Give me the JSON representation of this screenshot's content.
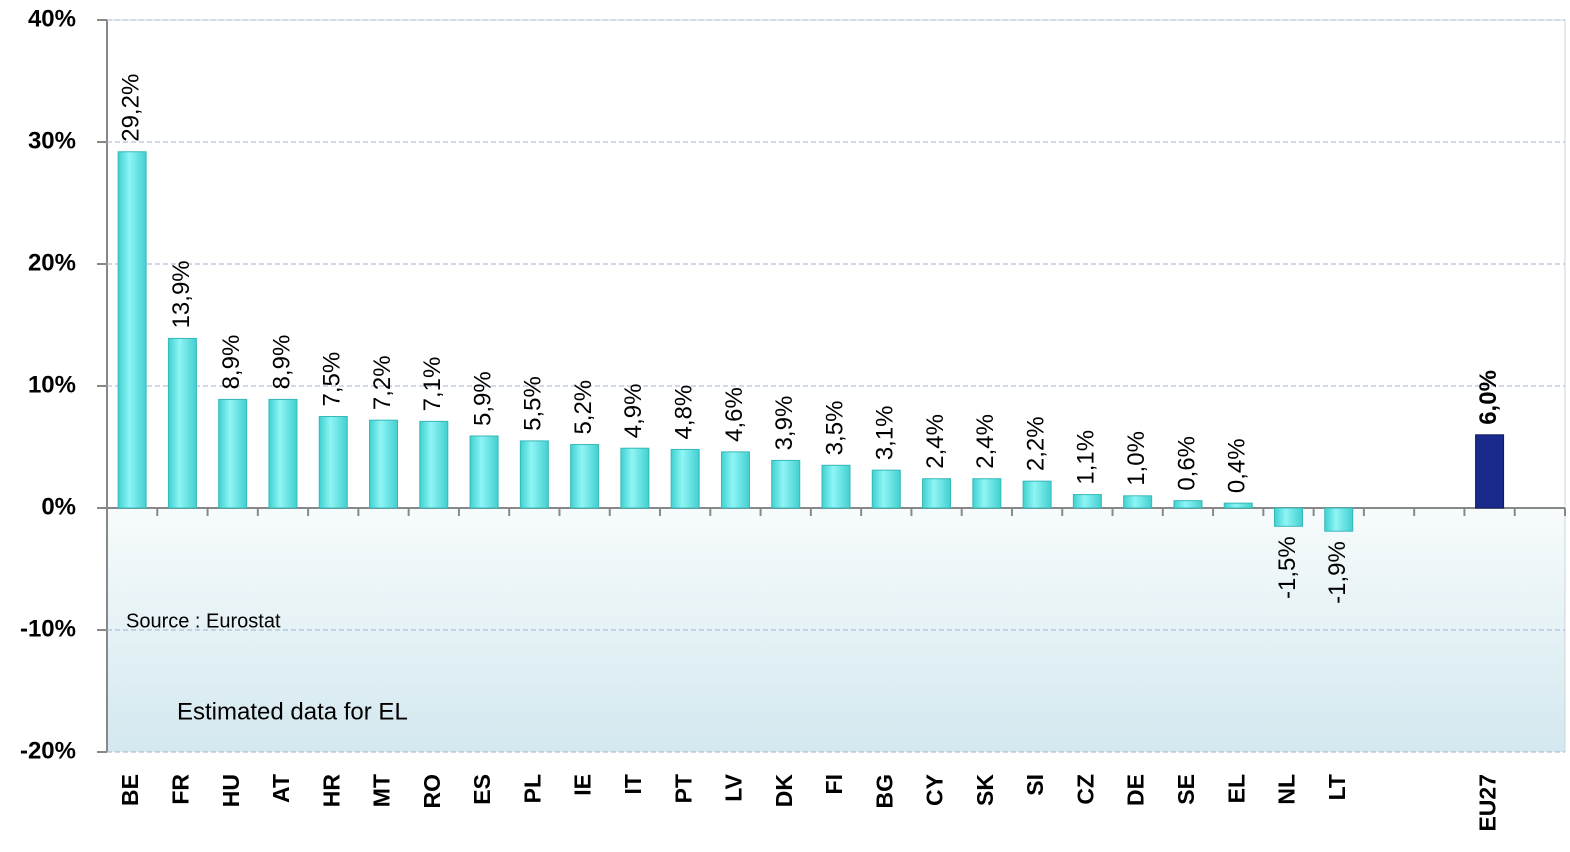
{
  "chart_data": {
    "type": "bar",
    "categories": [
      "BE",
      "FR",
      "HU",
      "AT",
      "HR",
      "MT",
      "RO",
      "ES",
      "PL",
      "IE",
      "IT",
      "PT",
      "LV",
      "DK",
      "FI",
      "BG",
      "CY",
      "SK",
      "SI",
      "CZ",
      "DE",
      "SE",
      "EL",
      "NL",
      "LT",
      null,
      null,
      "EU27",
      null
    ],
    "values": [
      29.2,
      13.9,
      8.9,
      8.9,
      7.5,
      7.2,
      7.1,
      5.9,
      5.5,
      5.2,
      4.9,
      4.8,
      4.6,
      3.9,
      3.5,
      3.1,
      2.4,
      2.4,
      2.2,
      1.1,
      1.0,
      0.6,
      0.4,
      -1.5,
      -1.9,
      null,
      null,
      6.0,
      null
    ],
    "value_labels": [
      "29,2%",
      "13,9%",
      "8,9%",
      "8,9%",
      "7,5%",
      "7,2%",
      "7,1%",
      "5,9%",
      "5,5%",
      "5,2%",
      "4,9%",
      "4,8%",
      "4,6%",
      "3,9%",
      "3,5%",
      "3,1%",
      "2,4%",
      "2,4%",
      "2,2%",
      "1,1%",
      "1,0%",
      "0,6%",
      "0,4%",
      "-1,5%",
      "-1,9%",
      null,
      null,
      "6,0%",
      null
    ],
    "colors": [
      "#5ee6e6",
      "#5ee6e6",
      "#5ee6e6",
      "#5ee6e6",
      "#5ee6e6",
      "#5ee6e6",
      "#5ee6e6",
      "#5ee6e6",
      "#5ee6e6",
      "#5ee6e6",
      "#5ee6e6",
      "#5ee6e6",
      "#5ee6e6",
      "#5ee6e6",
      "#5ee6e6",
      "#5ee6e6",
      "#5ee6e6",
      "#5ee6e6",
      "#5ee6e6",
      "#5ee6e6",
      "#5ee6e6",
      "#5ee6e6",
      "#5ee6e6",
      "#5ee6e6",
      "#5ee6e6",
      null,
      null,
      "#1a2a8c",
      null
    ],
    "ylim": [
      -20,
      40
    ],
    "yticks": [
      {
        "value": -20,
        "label": "-20%"
      },
      {
        "value": -10,
        "label": "-10%"
      },
      {
        "value": 0,
        "label": "0%"
      },
      {
        "value": 10,
        "label": "10%"
      },
      {
        "value": 20,
        "label": "20%"
      },
      {
        "value": 30,
        "label": "30%"
      },
      {
        "value": 40,
        "label": "40%"
      }
    ],
    "grid": true,
    "annotations": [
      "Source : Eurostat",
      "Estimated data for EL"
    ]
  }
}
